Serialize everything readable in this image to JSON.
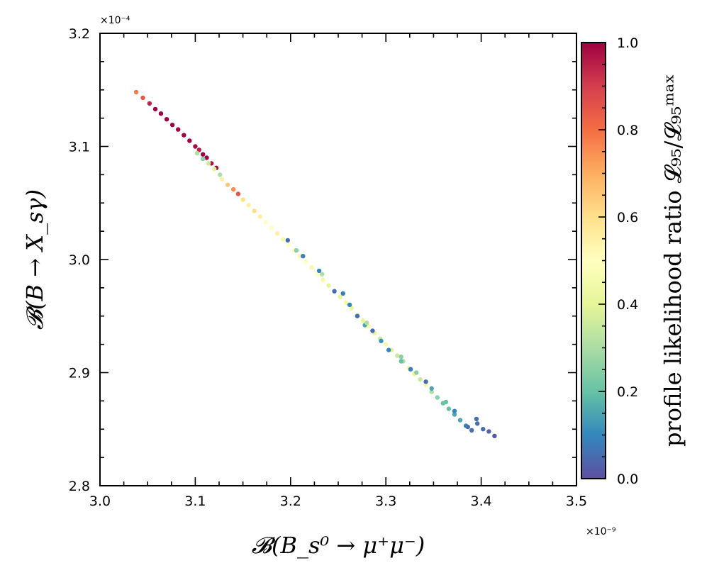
{
  "chart_data": {
    "type": "scatter",
    "xlabel": "𝓑(B_s⁰ → μ⁺μ⁻)",
    "ylabel": "𝓑(B → X_sγ)",
    "x_multiplier": "×10⁻⁹",
    "y_multiplier": "×10⁻⁴",
    "xlim": [
      3.0,
      3.5
    ],
    "ylim": [
      2.8,
      3.2
    ],
    "xticks": [
      "3.0",
      "3.1",
      "3.2",
      "3.3",
      "3.4",
      "3.5"
    ],
    "yticks": [
      "2.8",
      "2.9",
      "3.0",
      "3.1",
      "3.2"
    ],
    "grid": false,
    "colorbar": {
      "label": "profile likelihood ratio 𝓛₉₅/𝓛₉₅ᵐᵃˣ",
      "range": [
        0.0,
        1.0
      ],
      "ticks": [
        "0.0",
        "0.2",
        "0.4",
        "0.6",
        "0.8",
        "1.0"
      ],
      "colormap": "Spectral_r"
    },
    "points": [
      [
        3.038,
        3.148,
        0.78
      ],
      [
        3.045,
        3.143,
        0.85
      ],
      [
        3.052,
        3.138,
        0.95
      ],
      [
        3.058,
        3.133,
        1.0
      ],
      [
        3.064,
        3.129,
        1.0
      ],
      [
        3.07,
        3.124,
        1.0
      ],
      [
        3.076,
        3.119,
        1.0
      ],
      [
        3.082,
        3.115,
        1.0
      ],
      [
        3.088,
        3.11,
        1.0
      ],
      [
        3.094,
        3.105,
        1.0
      ],
      [
        3.1,
        3.1,
        0.98
      ],
      [
        3.104,
        3.097,
        0.95
      ],
      [
        3.108,
        3.093,
        1.0
      ],
      [
        3.112,
        3.09,
        1.0
      ],
      [
        3.117,
        3.085,
        0.98
      ],
      [
        3.122,
        3.081,
        1.0
      ],
      [
        3.102,
        3.094,
        0.3
      ],
      [
        3.108,
        3.089,
        0.25
      ],
      [
        3.114,
        3.085,
        0.35
      ],
      [
        3.12,
        3.08,
        0.4
      ],
      [
        3.126,
        3.075,
        0.3
      ],
      [
        3.128,
        3.071,
        0.55
      ],
      [
        3.134,
        3.066,
        0.65
      ],
      [
        3.14,
        3.062,
        0.75
      ],
      [
        3.145,
        3.058,
        0.85
      ],
      [
        3.15,
        3.053,
        0.6
      ],
      [
        3.156,
        3.048,
        0.55
      ],
      [
        3.162,
        3.043,
        0.6
      ],
      [
        3.168,
        3.038,
        0.55
      ],
      [
        3.174,
        3.033,
        0.5
      ],
      [
        3.18,
        3.028,
        0.5
      ],
      [
        3.186,
        3.023,
        0.55
      ],
      [
        3.192,
        3.018,
        0.45
      ],
      [
        3.198,
        3.013,
        0.5
      ],
      [
        3.204,
        3.008,
        0.5
      ],
      [
        3.21,
        3.003,
        0.45
      ],
      [
        3.216,
        2.998,
        0.5
      ],
      [
        3.222,
        2.993,
        0.45
      ],
      [
        3.228,
        2.987,
        0.5
      ],
      [
        3.234,
        2.982,
        0.45
      ],
      [
        3.24,
        2.977,
        0.4
      ],
      [
        3.246,
        2.972,
        0.45
      ],
      [
        3.252,
        2.967,
        0.4
      ],
      [
        3.258,
        2.962,
        0.45
      ],
      [
        3.264,
        2.957,
        0.4
      ],
      [
        3.27,
        2.951,
        0.45
      ],
      [
        3.276,
        2.946,
        0.4
      ],
      [
        3.282,
        2.941,
        0.45
      ],
      [
        3.288,
        2.935,
        0.4
      ],
      [
        3.294,
        2.93,
        0.35
      ],
      [
        3.3,
        2.925,
        0.45
      ],
      [
        3.306,
        2.92,
        0.4
      ],
      [
        3.312,
        2.915,
        0.35
      ],
      [
        3.318,
        2.91,
        0.3
      ],
      [
        3.324,
        2.904,
        0.45
      ],
      [
        3.33,
        2.899,
        0.4
      ],
      [
        3.336,
        2.894,
        0.35
      ],
      [
        3.342,
        2.889,
        0.45
      ],
      [
        3.348,
        2.883,
        0.3
      ],
      [
        3.354,
        2.878,
        0.25
      ],
      [
        3.36,
        2.873,
        0.2
      ],
      [
        3.366,
        2.868,
        0.2
      ],
      [
        3.372,
        2.863,
        0.15
      ],
      [
        3.378,
        2.858,
        0.15
      ],
      [
        3.384,
        2.853,
        0.1
      ],
      [
        3.39,
        2.849,
        0.05
      ],
      [
        3.396,
        2.855,
        0.05
      ],
      [
        3.402,
        2.85,
        0.05
      ],
      [
        3.408,
        2.848,
        0.03
      ],
      [
        3.414,
        2.844,
        0.02
      ],
      [
        3.197,
        3.017,
        0.05
      ],
      [
        3.213,
        3.003,
        0.08
      ],
      [
        3.23,
        2.99,
        0.1
      ],
      [
        3.246,
        2.972,
        0.05
      ],
      [
        3.255,
        2.97,
        0.08
      ],
      [
        3.262,
        2.96,
        0.1
      ],
      [
        3.27,
        2.95,
        0.05
      ],
      [
        3.278,
        2.942,
        0.15
      ],
      [
        3.286,
        2.937,
        0.05
      ],
      [
        3.295,
        2.928,
        0.12
      ],
      [
        3.303,
        2.92,
        0.1
      ],
      [
        3.316,
        2.91,
        0.2
      ],
      [
        3.326,
        2.903,
        0.08
      ],
      [
        3.342,
        2.892,
        0.05
      ],
      [
        3.348,
        2.886,
        0.15
      ],
      [
        3.363,
        2.874,
        0.2
      ],
      [
        3.372,
        2.866,
        0.1
      ],
      [
        3.386,
        2.852,
        0.05
      ],
      [
        3.395,
        2.859,
        0.05
      ],
      [
        3.316,
        2.914,
        0.25
      ],
      [
        3.233,
        2.987,
        0.3
      ],
      [
        3.206,
        3.008,
        0.25
      ],
      [
        3.28,
        2.944,
        0.3
      ],
      [
        3.332,
        2.9,
        0.25
      ]
    ]
  }
}
